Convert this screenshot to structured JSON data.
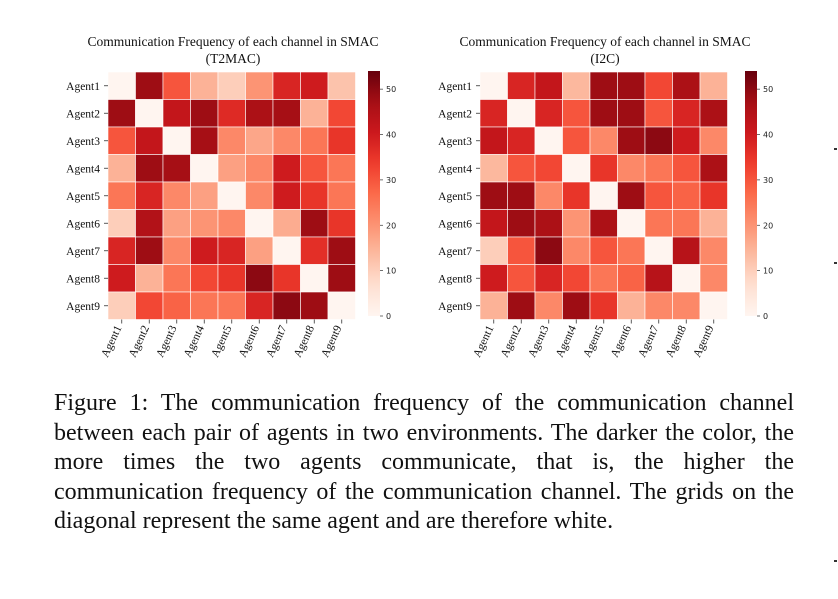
{
  "caption": {
    "text": "Figure 1: The communication frequency of the communication channel between each pair of agents in two environments.  The darker the color, the more times the two agents communicate, that is, the higher the communication frequency of the communication channel. The grids on the diagonal represent the same agent and are therefore white."
  },
  "colors": {
    "scale": [
      "#fff5f0",
      "#fee0d2",
      "#fcbba1",
      "#fc9272",
      "#fb6a4a",
      "#ef3b2c",
      "#cb181d",
      "#a50f15",
      "#67000d"
    ],
    "text": "#111111"
  },
  "chart_data": [
    {
      "type": "heatmap",
      "title_line1": "Communication Frequency of each channel in SMAC",
      "title_line2": "(T2MAC)",
      "rows": [
        "Agent1",
        "Agent2",
        "Agent3",
        "Agent4",
        "Agent5",
        "Agent6",
        "Agent7",
        "Agent8",
        "Agent9"
      ],
      "columns": [
        "Agent1",
        "Agent2",
        "Agent3",
        "Agent4",
        "Agent5",
        "Agent6",
        "Agent7",
        "Agent8",
        "Agent9"
      ],
      "values": [
        [
          0,
          48,
          30,
          15,
          10,
          20,
          38,
          40,
          12
        ],
        [
          48,
          0,
          42,
          48,
          37,
          46,
          47,
          15,
          32
        ],
        [
          30,
          42,
          0,
          47,
          22,
          17,
          22,
          25,
          35
        ],
        [
          15,
          48,
          47,
          0,
          18,
          22,
          40,
          30,
          25
        ],
        [
          25,
          38,
          22,
          18,
          0,
          22,
          40,
          35,
          25
        ],
        [
          10,
          45,
          18,
          20,
          22,
          0,
          16,
          48,
          35
        ],
        [
          38,
          48,
          22,
          40,
          38,
          18,
          0,
          36,
          48
        ],
        [
          40,
          15,
          25,
          32,
          35,
          50,
          35,
          0,
          48
        ],
        [
          10,
          32,
          28,
          25,
          25,
          38,
          50,
          48,
          0
        ]
      ],
      "colorbar": {
        "ticks": [
          0,
          10,
          20,
          30,
          40,
          50
        ],
        "min": 0,
        "max": 54
      }
    },
    {
      "type": "heatmap",
      "title_line1": "Communication Frequency of each channel in SMAC",
      "title_line2": "(I2C)",
      "rows": [
        "Agent1",
        "Agent2",
        "Agent3",
        "Agent4",
        "Agent5",
        "Agent6",
        "Agent7",
        "Agent8",
        "Agent9"
      ],
      "columns": [
        "Agent1",
        "Agent2",
        "Agent3",
        "Agent4",
        "Agent5",
        "Agent6",
        "Agent7",
        "Agent8",
        "Agent9"
      ],
      "values": [
        [
          0,
          38,
          42,
          14,
          48,
          48,
          32,
          46,
          15
        ],
        [
          38,
          0,
          38,
          30,
          48,
          48,
          30,
          38,
          46
        ],
        [
          42,
          38,
          0,
          30,
          22,
          48,
          50,
          40,
          22
        ],
        [
          14,
          30,
          32,
          0,
          35,
          22,
          25,
          30,
          46
        ],
        [
          48,
          48,
          22,
          35,
          0,
          48,
          30,
          28,
          35
        ],
        [
          42,
          48,
          46,
          20,
          46,
          0,
          25,
          25,
          15
        ],
        [
          10,
          30,
          50,
          22,
          30,
          25,
          0,
          44,
          22
        ],
        [
          40,
          30,
          38,
          32,
          25,
          28,
          44,
          0,
          22
        ],
        [
          15,
          48,
          22,
          48,
          35,
          15,
          22,
          22,
          0
        ]
      ],
      "colorbar": {
        "ticks": [
          0,
          10,
          20,
          30,
          40,
          50
        ],
        "min": 0,
        "max": 54
      }
    }
  ]
}
